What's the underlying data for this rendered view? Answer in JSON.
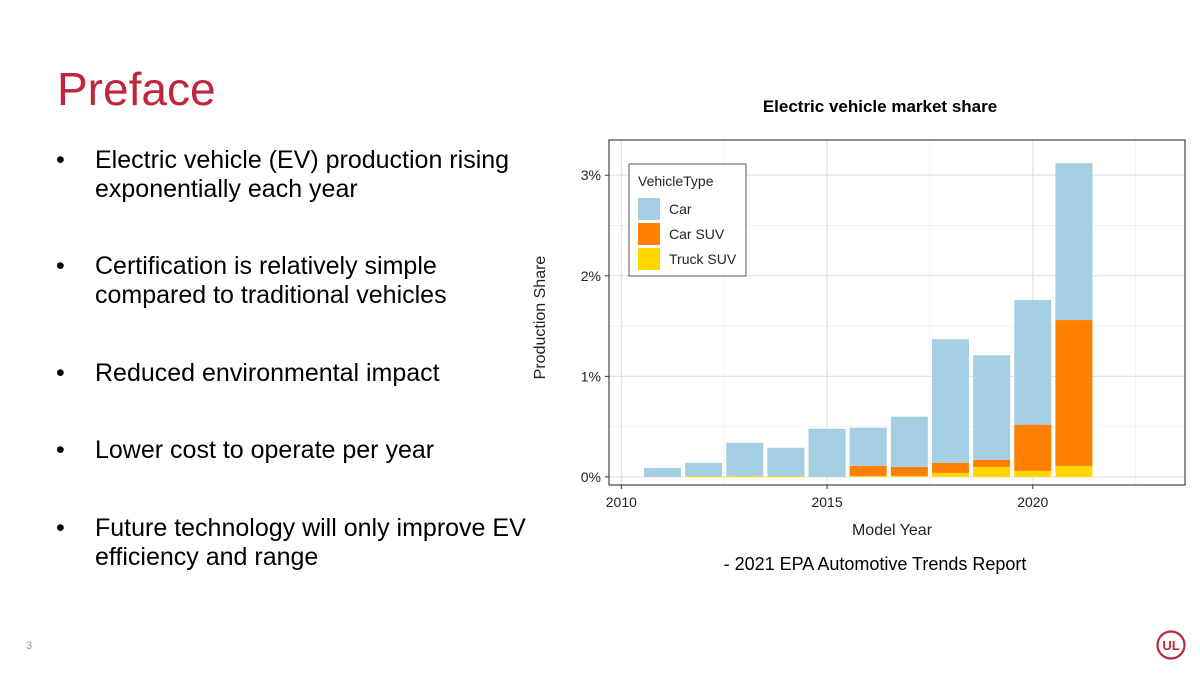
{
  "slide": {
    "title": "Preface",
    "page_number": "3",
    "logo_text": "UL",
    "source_note": "- 2021 EPA Automotive Trends Report",
    "bullets": [
      {
        "marker": "•",
        "text": "Electric vehicle (EV) production rising exponentially each year"
      },
      {
        "marker": "•",
        "text": "Certification is relatively simple compared to traditional vehicles"
      },
      {
        "marker": "•",
        "text": "Reduced environmental impact"
      },
      {
        "marker": "•",
        "text": "Lower cost to operate per year"
      },
      {
        "marker": "•",
        "text": "Future technology will only improve EV efficiency and range"
      }
    ]
  },
  "chart_data": {
    "type": "bar",
    "stacked": true,
    "title": "Electric vehicle market share",
    "xlabel": "Model Year",
    "ylabel": "Production Share",
    "legend_title": "VehicleType",
    "legend_position": "top-left",
    "grid": true,
    "x": [
      2011,
      2012,
      2013,
      2014,
      2015,
      2016,
      2017,
      2018,
      2019,
      2020,
      2021
    ],
    "xlim": [
      2009.7,
      2023.7
    ],
    "ylim": [
      -0.08,
      3.35
    ],
    "x_ticks": [
      2010,
      2015,
      2020
    ],
    "x_tick_labels": [
      "2010",
      "2015",
      "2020"
    ],
    "y_ticks": [
      0,
      1,
      2,
      3
    ],
    "y_tick_labels": [
      "0%",
      "1%",
      "2%",
      "3%"
    ],
    "series": [
      {
        "name": "Truck SUV",
        "color": "#ffd700",
        "values": [
          0,
          0.01,
          0.01,
          0.01,
          0,
          0.01,
          0.01,
          0.04,
          0.1,
          0.06,
          0.11
        ]
      },
      {
        "name": "Car SUV",
        "color": "#ff7f00",
        "values": [
          0,
          0,
          0,
          0,
          0,
          0.1,
          0.09,
          0.1,
          0.07,
          0.46,
          1.45
        ]
      },
      {
        "name": "Car",
        "color": "#a6cee3",
        "values": [
          0.09,
          0.13,
          0.33,
          0.28,
          0.48,
          0.38,
          0.5,
          1.23,
          1.04,
          1.24,
          1.56
        ]
      }
    ]
  }
}
